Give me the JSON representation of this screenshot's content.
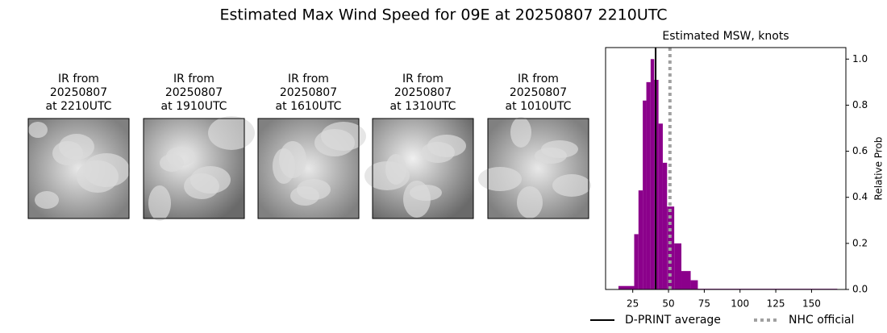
{
  "chart_data": {
    "type": "histogram",
    "title": "Estimated Max Wind Speed for 09E at 20250807 2210UTC",
    "panels": [
      [
        "IR from",
        "20250807",
        "at 2210UTC"
      ],
      [
        "IR from",
        "20250807",
        "at 1910UTC"
      ],
      [
        "IR from",
        "20250807",
        "at 1610UTC"
      ],
      [
        "IR from",
        "20250807",
        "at 1310UTC"
      ],
      [
        "IR from",
        "20250807",
        "at 1010UTC"
      ]
    ],
    "subtitle": "Estimated MSW, knots",
    "ylabel": "Relative Prob",
    "color": "#8b008b",
    "bins": [
      15,
      26,
      29,
      32,
      34.5,
      37.5,
      40,
      43,
      46,
      49,
      54,
      59,
      65.5,
      70.5,
      168
    ],
    "values": [
      0.015,
      0.24,
      0.43,
      0.82,
      0.9,
      1.0,
      0.91,
      0.72,
      0.55,
      0.36,
      0.2,
      0.08,
      0.04,
      0.003
    ],
    "xlim": [
      6,
      174
    ],
    "ylim": [
      0,
      1.05
    ],
    "xticks": [
      25,
      50,
      75,
      100,
      125,
      150
    ],
    "yticks": [
      {
        "value": 0,
        "label": "0.0"
      },
      {
        "value": 0.2,
        "label": "0.2"
      },
      {
        "value": 0.4,
        "label": "0.4"
      },
      {
        "value": 0.6,
        "label": "0.6"
      },
      {
        "value": 0.8,
        "label": "0.8"
      },
      {
        "value": 1.0,
        "label": "1.0"
      }
    ],
    "lines": [
      {
        "name": "D-PRINT average",
        "x": 41,
        "color": "#000000",
        "style": "solid"
      },
      {
        "name": "NHC official",
        "x": 51,
        "color": "#a0a0a0",
        "style": "dotted"
      }
    ]
  }
}
